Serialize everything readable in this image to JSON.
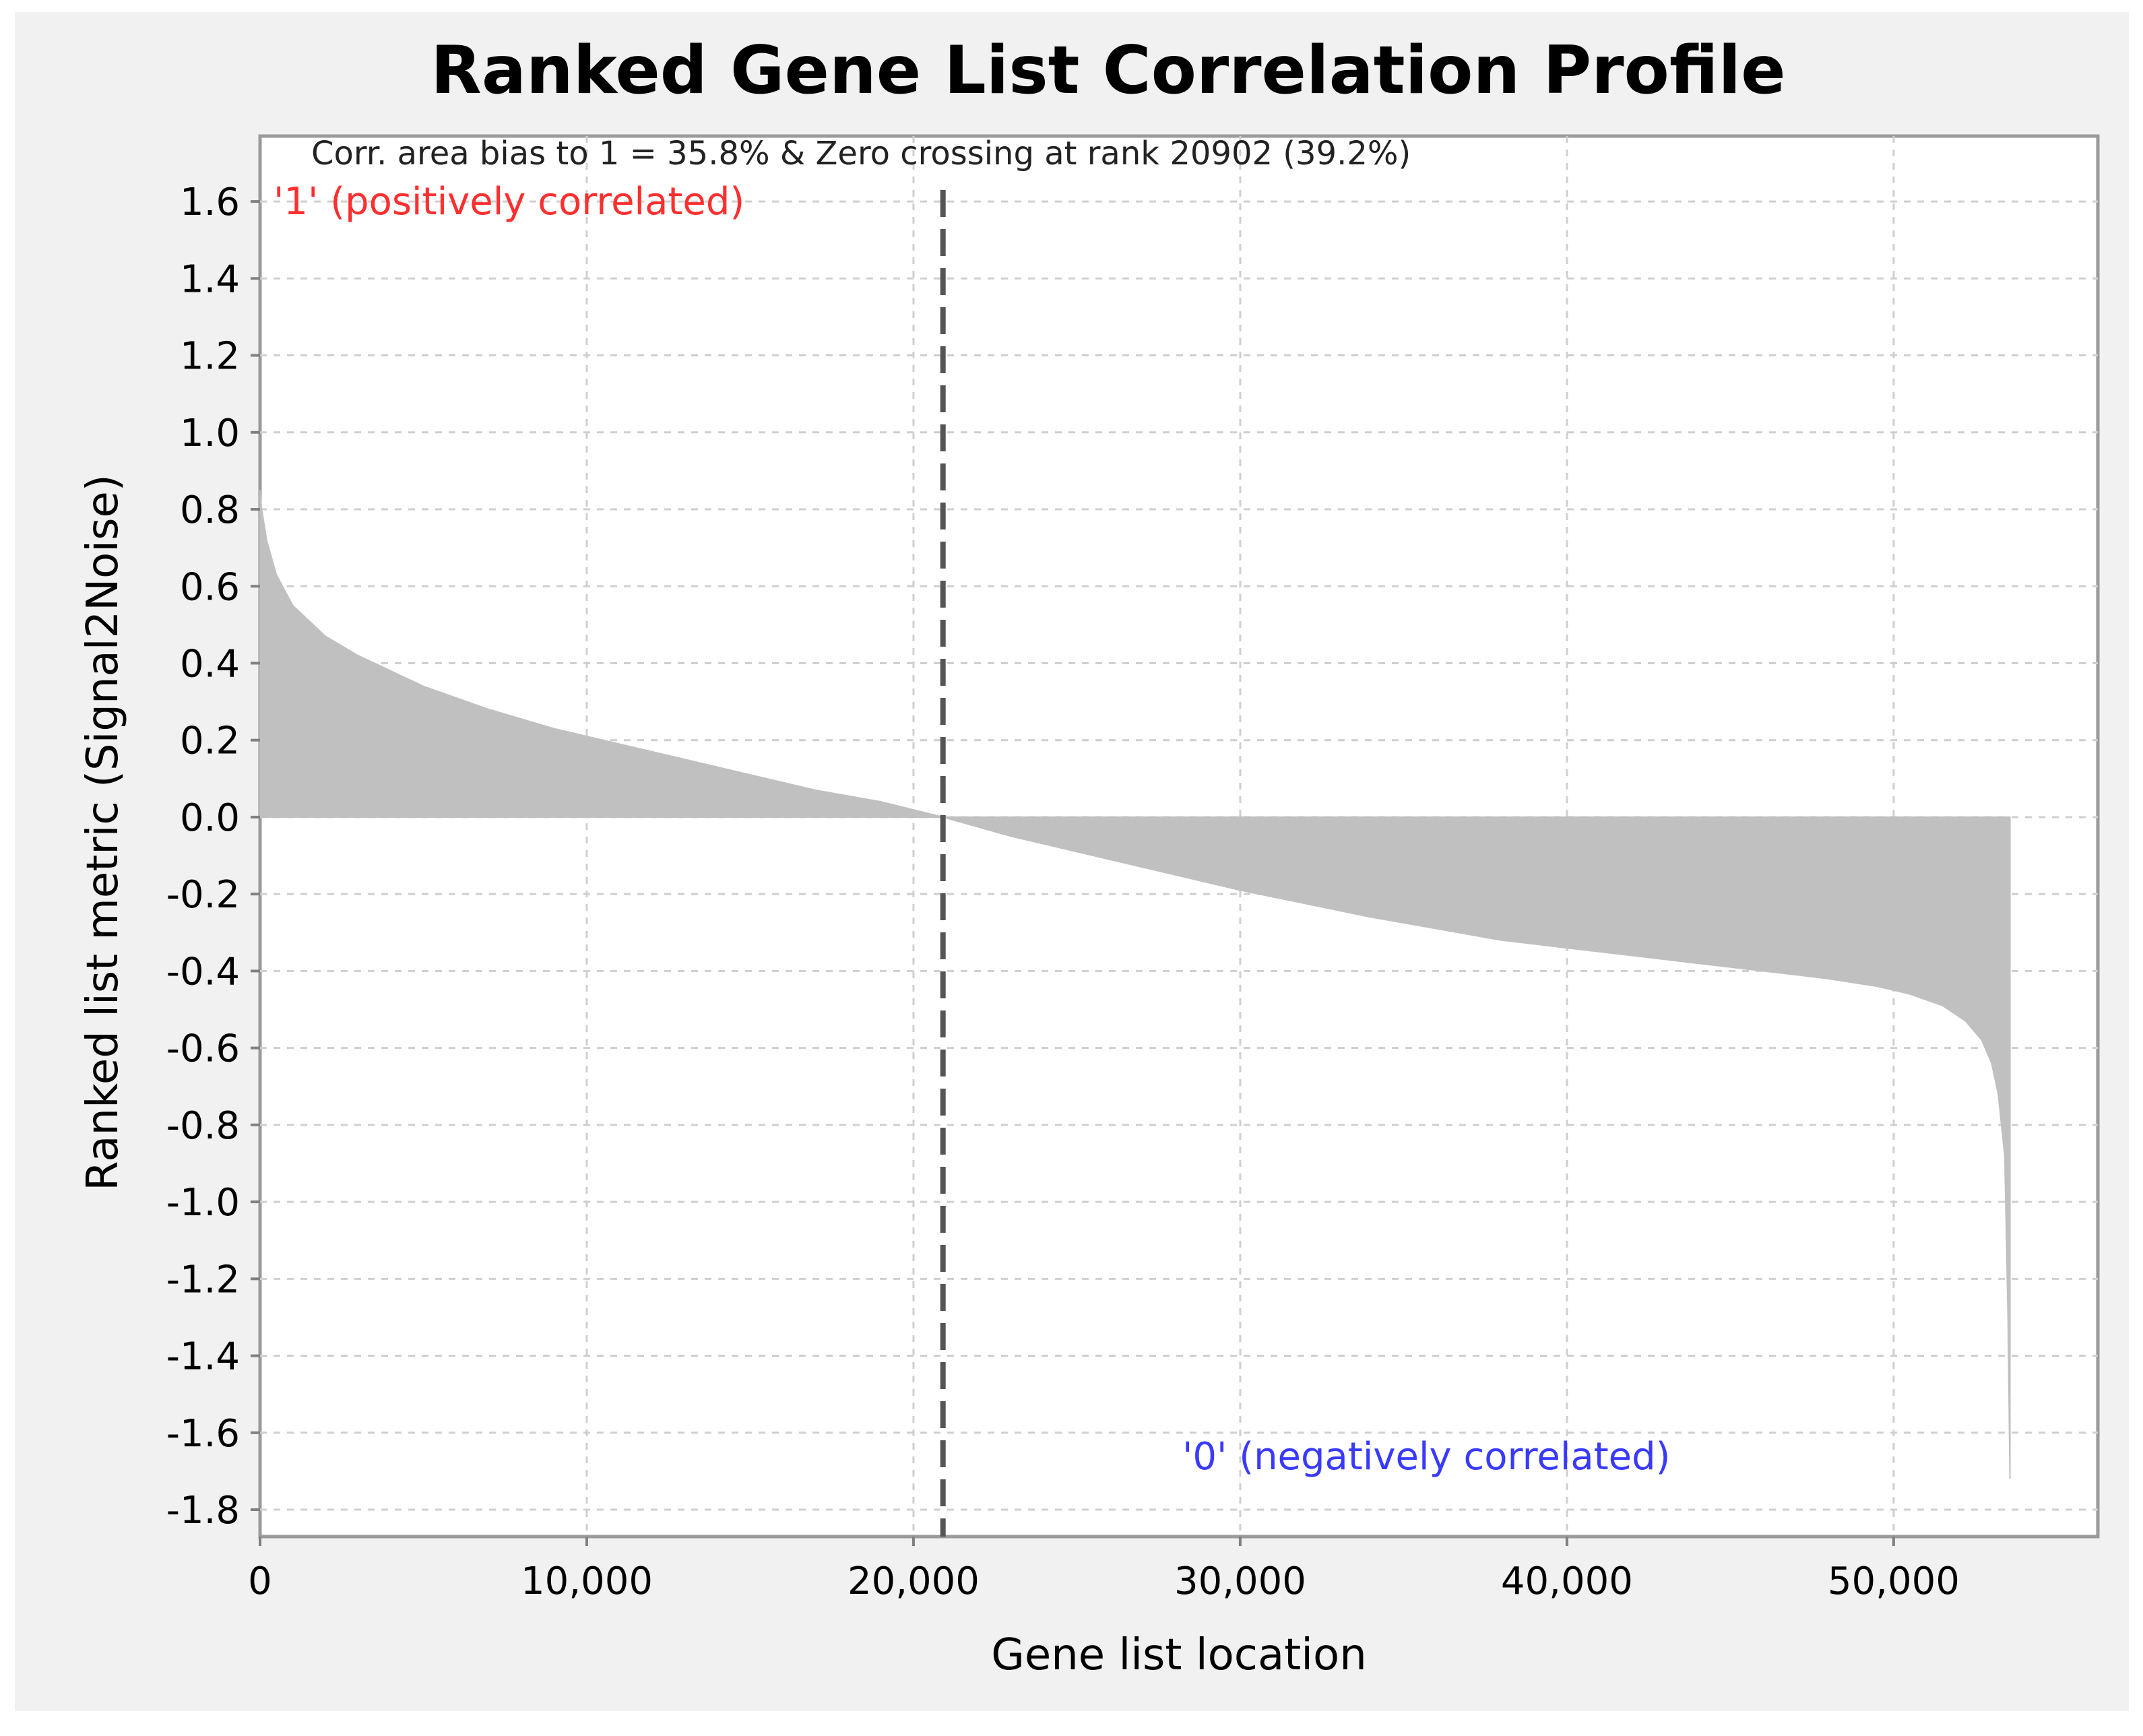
{
  "chart_data": {
    "type": "area",
    "title": "Ranked Gene List Correlation Profile",
    "xlabel": "Gene list location",
    "ylabel": "Ranked list metric (Signal2Noise)",
    "annotation": "Corr. area bias to 1 = 35.8% & Zero crossing at rank 20902 (39.2%)",
    "positive_label": "'1' (positively correlated)",
    "negative_label": "'0' (negatively correlated)",
    "xlim": [
      0,
      56250
    ],
    "ylim": [
      -1.87,
      1.77
    ],
    "x_ticks": [
      0,
      10000,
      20000,
      30000,
      40000,
      50000
    ],
    "x_tick_labels": [
      "0",
      "10,000",
      "20,000",
      "30,000",
      "40,000",
      "50,000"
    ],
    "y_ticks": [
      1.6,
      1.4,
      1.2,
      1.0,
      0.8,
      0.6,
      0.4,
      0.2,
      0.0,
      -0.2,
      -0.4,
      -0.6,
      -0.8,
      -1.0,
      -1.2,
      -1.4,
      -1.6,
      -1.8
    ],
    "y_tick_labels": [
      "1.6",
      "1.4",
      "1.2",
      "1.0",
      "0.8",
      "0.6",
      "0.4",
      "0.2",
      "0.0",
      "-0.2",
      "-0.4",
      "-0.6",
      "-0.8",
      "-1.0",
      "-1.2",
      "-1.4",
      "-1.6",
      "-1.8"
    ],
    "grid": true,
    "zero_crossing_rank": 20902,
    "series": [
      {
        "color": "#c0c0c0",
        "x": [
          0,
          50,
          200,
          500,
          1000,
          2000,
          3000,
          4000,
          5000,
          7000,
          9000,
          11000,
          13000,
          15000,
          17000,
          19000,
          20902,
          23000,
          26000,
          30000,
          34000,
          38000,
          41000,
          44000,
          46000,
          48000,
          49500,
          50500,
          51500,
          52200,
          52700,
          53000,
          53200,
          53400,
          53500,
          53560
        ],
        "y": [
          0.85,
          0.8,
          0.72,
          0.63,
          0.55,
          0.47,
          0.42,
          0.38,
          0.34,
          0.28,
          0.23,
          0.19,
          0.15,
          0.11,
          0.07,
          0.04,
          0.0,
          -0.05,
          -0.11,
          -0.19,
          -0.26,
          -0.32,
          -0.35,
          -0.38,
          -0.4,
          -0.42,
          -0.44,
          -0.46,
          -0.49,
          -0.53,
          -0.58,
          -0.64,
          -0.72,
          -0.88,
          -1.3,
          -1.72
        ]
      }
    ],
    "colors": {
      "fill": "#c0c0c0",
      "positive_label": "#ff2f2f",
      "negative_label": "#3a3aff",
      "zero_line": "#555555",
      "grid": "#cfcfcf",
      "background": "#f1f1f1",
      "plot_background": "#ffffff"
    }
  }
}
